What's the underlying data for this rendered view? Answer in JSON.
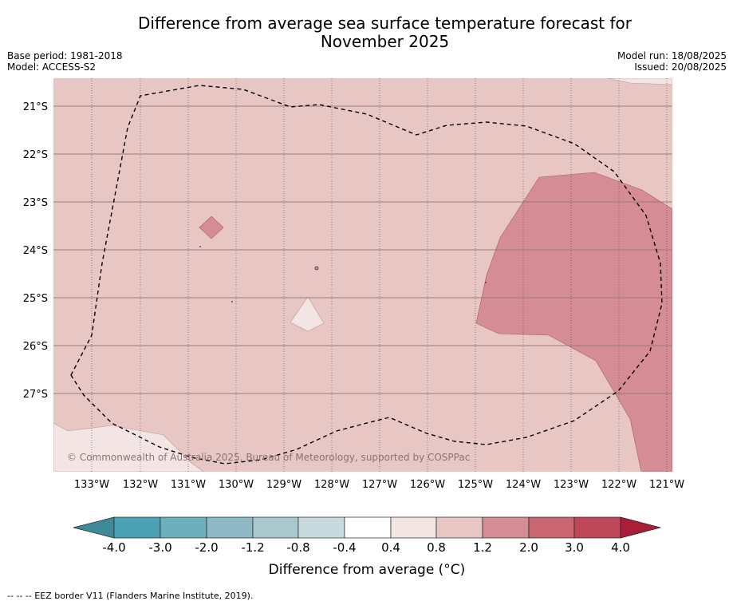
{
  "title_line1": "Difference from average sea surface temperature forecast for",
  "title_line2": "November 2025",
  "meta_left": {
    "base_period": "Base period: 1981-2018",
    "model": "Model: ACCESS-S2"
  },
  "meta_right": {
    "model_run": "Model run: 18/08/2025",
    "issued": "Issued: 20/08/2025"
  },
  "copyright": "© Commonwealth of Australia 2025, Bureau of Meteorology, supported by COSPPac",
  "footnote": "-- -- -- EEZ border V11 (Flanders Marine Institute, 2019).",
  "map": {
    "lon_labels": [
      "133°W",
      "132°W",
      "131°W",
      "130°W",
      "129°W",
      "128°W",
      "127°W",
      "126°W",
      "125°W",
      "124°W",
      "123°W",
      "122°W",
      "121°W"
    ],
    "lat_labels": [
      "21°S",
      "22°S",
      "23°S",
      "24°S",
      "25°S",
      "26°S",
      "27°S"
    ],
    "colors": {
      "anom_0.8_1.2": "#e8c6c3",
      "anom_1.2_2.0": "#d58c94",
      "anom_0.4_0.8": "#f4e5e5",
      "eez_border": "#000000"
    }
  },
  "colorbar": {
    "title": "Difference from average (°C)",
    "ticks": [
      "-4.0",
      "-3.0",
      "-2.0",
      "-1.2",
      "-0.8",
      "-0.4",
      "0.4",
      "0.8",
      "1.2",
      "2.0",
      "3.0",
      "4.0"
    ],
    "colors": [
      "#3e8a98",
      "#4aa2b4",
      "#6eafbd",
      "#8db8c4",
      "#a9c8cd",
      "#c8dadd",
      "#ffffff",
      "#f4e5e5",
      "#e8c6c3",
      "#d58c94",
      "#ca6670",
      "#be4758",
      "#aa1e3a"
    ]
  }
}
